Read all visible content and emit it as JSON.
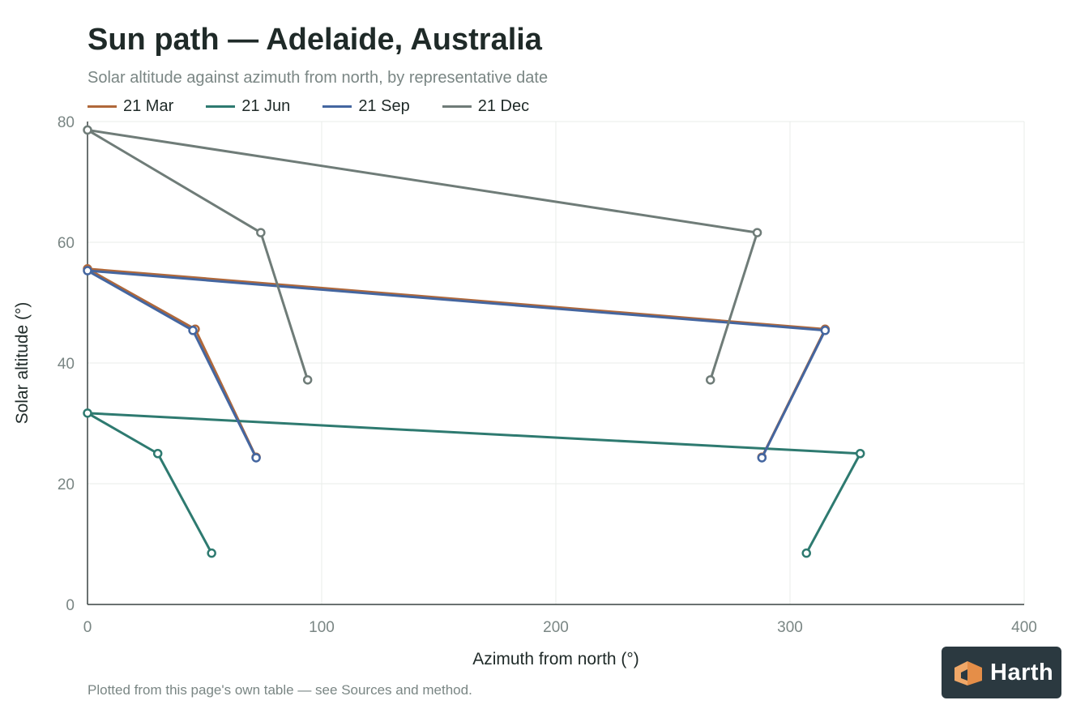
{
  "chart_data": {
    "type": "line",
    "title": "Sun path — Adelaide, Australia",
    "subtitle": "Solar altitude against azimuth from north, by representative date",
    "xlabel": "Azimuth from north (°)",
    "ylabel": "Solar altitude (°)",
    "xlim": [
      0,
      400
    ],
    "ylim": [
      0,
      80
    ],
    "xticks": [
      0,
      100,
      200,
      300,
      400
    ],
    "yticks": [
      0,
      20,
      40,
      60,
      80
    ],
    "grid": true,
    "legend_position": "top-left",
    "series": [
      {
        "name": "21 Mar",
        "color": "#b0683a",
        "points": [
          [
            72,
            24.4
          ],
          [
            46,
            45.6
          ],
          [
            0,
            55.6
          ],
          [
            315,
            45.6
          ],
          [
            288,
            24.4
          ]
        ]
      },
      {
        "name": "21 Jun",
        "color": "#2e7a70",
        "points": [
          [
            53,
            8.5
          ],
          [
            30,
            25
          ],
          [
            0,
            31.7
          ],
          [
            330,
            25
          ],
          [
            307,
            8.5
          ]
        ]
      },
      {
        "name": "21 Sep",
        "color": "#4466a0",
        "points": [
          [
            72,
            24.3
          ],
          [
            45,
            45.4
          ],
          [
            0,
            55.3
          ],
          [
            315,
            45.4
          ],
          [
            288,
            24.3
          ]
        ]
      },
      {
        "name": "21 Dec",
        "color": "#6f7c78",
        "points": [
          [
            94,
            37.2
          ],
          [
            74,
            61.6
          ],
          [
            0,
            78.6
          ],
          [
            286,
            61.6
          ],
          [
            266,
            37.2
          ]
        ]
      }
    ]
  },
  "footnote": "Plotted from this page's own table — see Sources and method.",
  "logo": {
    "text": "Harth",
    "accent": "#f0a868"
  }
}
